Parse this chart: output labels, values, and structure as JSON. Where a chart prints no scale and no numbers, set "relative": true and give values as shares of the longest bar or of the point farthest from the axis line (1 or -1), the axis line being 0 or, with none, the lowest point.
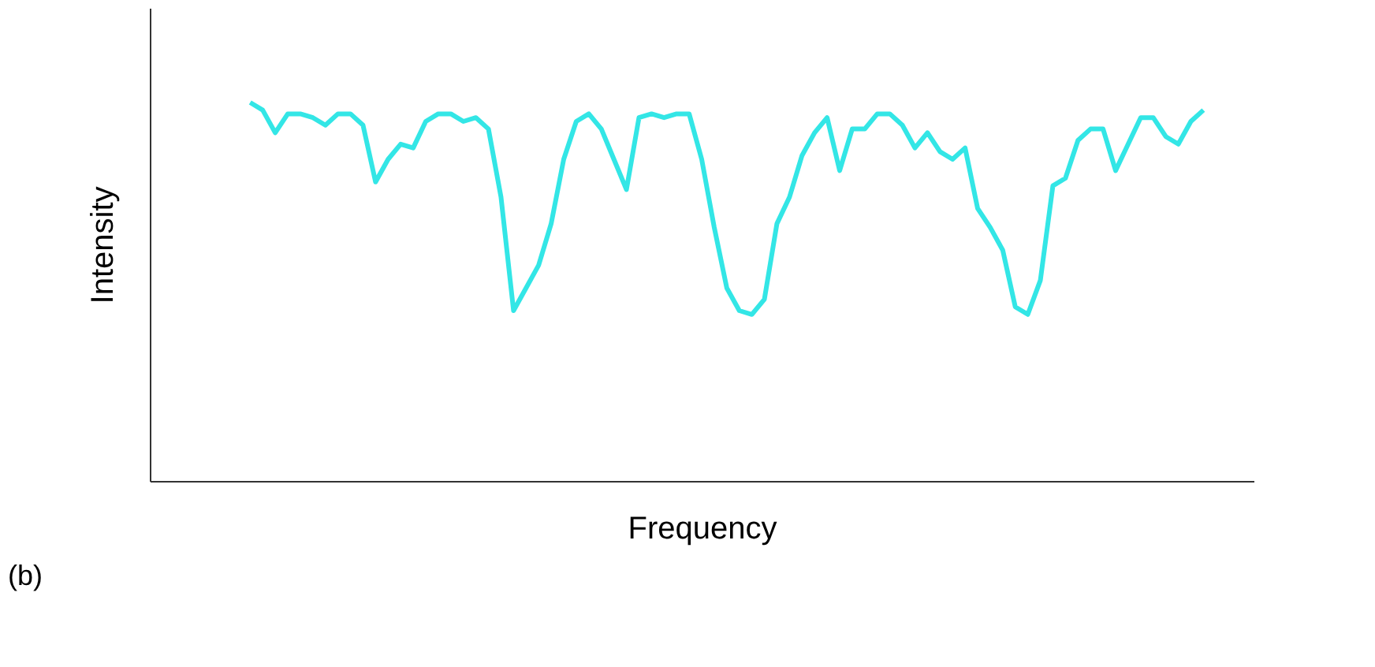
{
  "chart_data": {
    "type": "line",
    "relative": true,
    "xlabel": "Frequency",
    "ylabel": "Intensity",
    "annotations": [
      "(b)"
    ],
    "grid": false,
    "legend": false,
    "marker": "none",
    "line_style": "solid",
    "categories": [
      null,
      null,
      null,
      null,
      null,
      null,
      null,
      null,
      null,
      null,
      null,
      null,
      null,
      null,
      null,
      null,
      null,
      null,
      null,
      null,
      null,
      null,
      null,
      null,
      null,
      null,
      null,
      null,
      null,
      null,
      null,
      null,
      null,
      null,
      null,
      null,
      null,
      null,
      null,
      null,
      null,
      null,
      null,
      null,
      null,
      null,
      null,
      null,
      null,
      null,
      null,
      null,
      null,
      null,
      null,
      null,
      null,
      null,
      null,
      null,
      null,
      null,
      null,
      null,
      null,
      null,
      null,
      null,
      null,
      null,
      null,
      null,
      null,
      null,
      null,
      null,
      null
    ],
    "series": [
      {
        "color": "#33e6e6",
        "values": [
          1.0,
          0.98,
          0.92,
          0.97,
          0.97,
          0.96,
          0.94,
          0.97,
          0.97,
          0.94,
          0.79,
          0.85,
          0.89,
          0.88,
          0.95,
          0.97,
          0.97,
          0.95,
          0.96,
          0.93,
          0.75,
          0.45,
          0.51,
          0.57,
          0.68,
          0.85,
          0.95,
          0.97,
          0.93,
          0.85,
          0.77,
          0.96,
          0.97,
          0.96,
          0.97,
          0.97,
          0.85,
          0.67,
          0.51,
          0.45,
          0.44,
          0.48,
          0.68,
          0.75,
          0.86,
          0.92,
          0.96,
          0.82,
          0.93,
          0.93,
          0.97,
          0.97,
          0.94,
          0.88,
          0.92,
          0.87,
          0.85,
          0.88,
          0.72,
          0.67,
          0.61,
          0.46,
          0.44,
          0.53,
          0.78,
          0.8,
          0.9,
          0.93,
          0.93,
          0.82,
          0.89,
          0.96,
          0.96,
          0.91,
          0.89,
          0.95,
          0.98
        ]
      }
    ]
  }
}
